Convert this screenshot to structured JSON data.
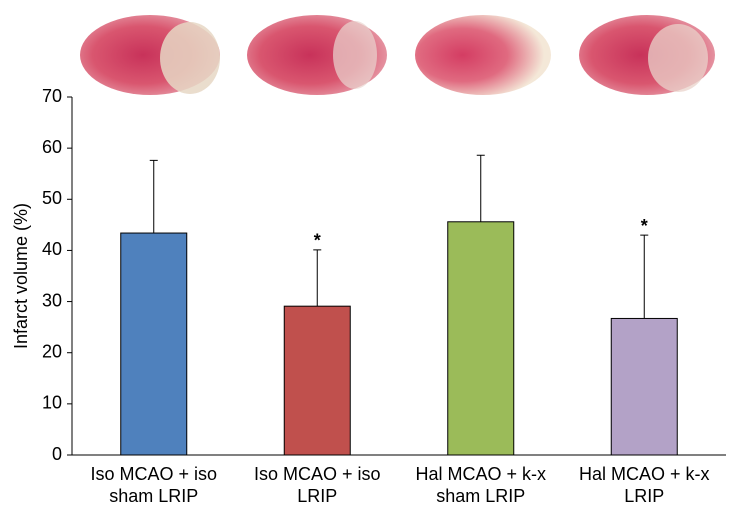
{
  "chart_data": {
    "type": "bar",
    "ylabel": "Infarct volume (%)",
    "categories": [
      [
        "Iso MCAO + iso",
        "sham LRIP"
      ],
      [
        "Iso MCAO + iso",
        "LRIP"
      ],
      [
        "Hal MCAO + k-x",
        "sham LRIP"
      ],
      [
        "Hal MCAO + k-x",
        "LRIP"
      ]
    ],
    "values": [
      43.4,
      29.1,
      45.6,
      26.7
    ],
    "errors": [
      14.2,
      11.0,
      13.0,
      16.3
    ],
    "colors": [
      "#4f81bd",
      "#c0504d",
      "#9bbb59",
      "#b3a2c7"
    ],
    "significance": [
      null,
      "*",
      null,
      "*"
    ],
    "ylim": [
      0,
      70
    ],
    "yticks": [
      0,
      10,
      20,
      30,
      40,
      50,
      60,
      70
    ],
    "grid": false
  }
}
